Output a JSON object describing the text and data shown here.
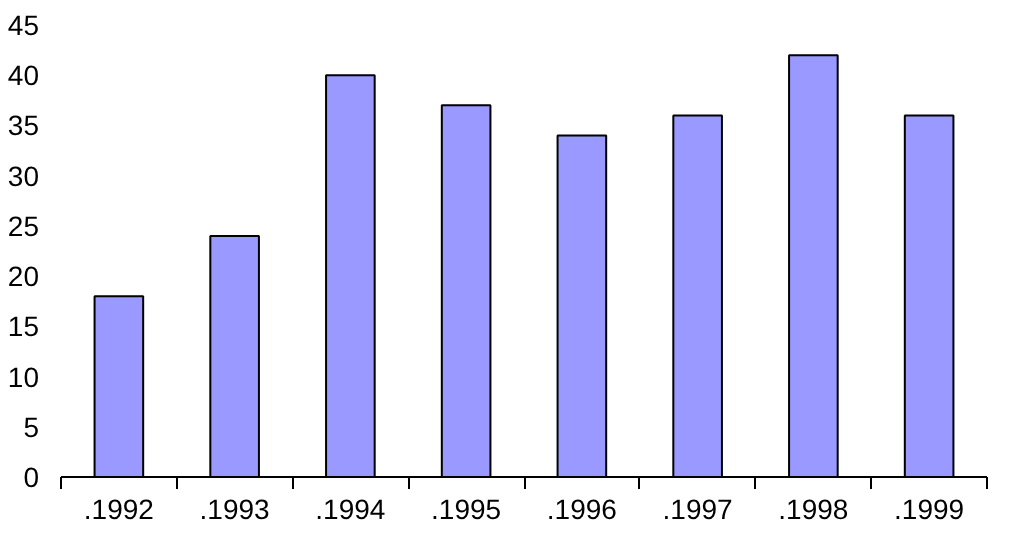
{
  "chart_data": {
    "type": "bar",
    "categories": [
      ".1992",
      ".1993",
      ".1994",
      ".1995",
      ".1996",
      ".1997",
      ".1998",
      ".1999"
    ],
    "values": [
      18,
      24,
      40,
      37,
      34,
      36,
      42,
      36
    ],
    "color": "#9999ff",
    "ylim": [
      0,
      45
    ],
    "yticks": [
      0,
      5,
      10,
      15,
      20,
      25,
      30,
      35,
      40,
      45
    ],
    "grid": false
  }
}
